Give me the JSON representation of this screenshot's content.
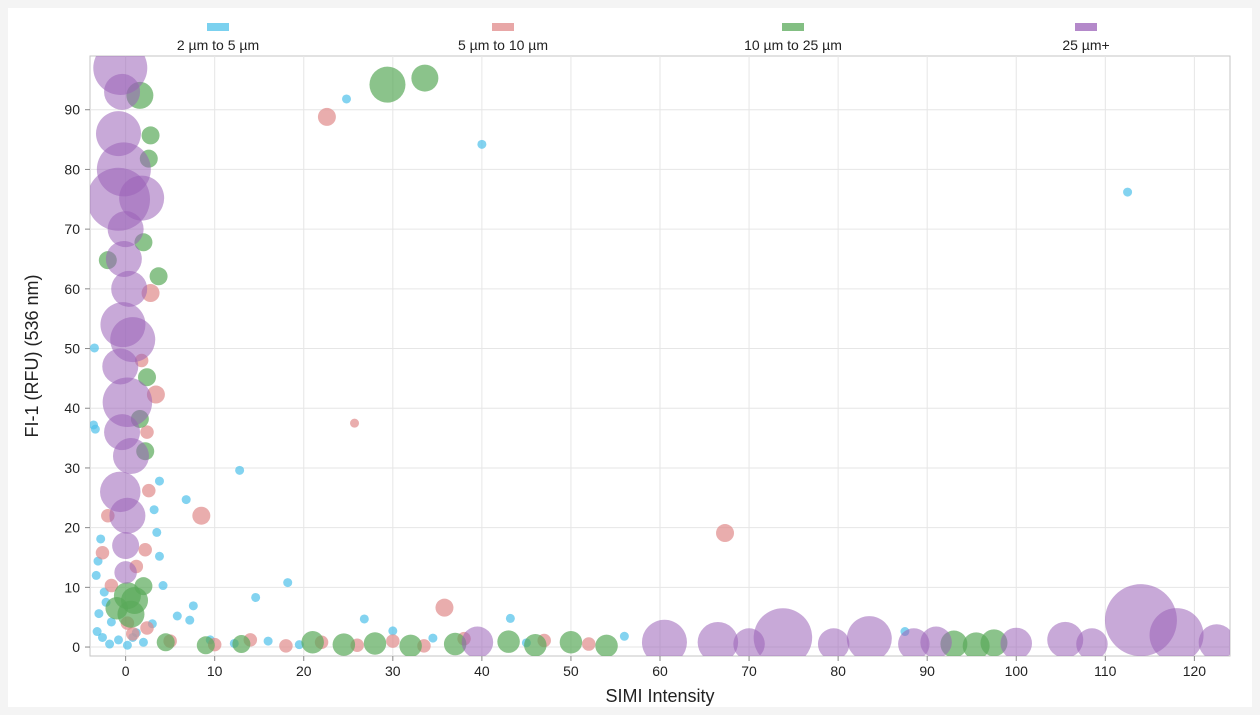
{
  "chart_data": {
    "type": "scatter",
    "title": "",
    "xlabel": "SIMI Intensity",
    "ylabel": "FI-1 (RFU) (536 nm)",
    "xlim": [
      -4,
      124
    ],
    "ylim": [
      -1.5,
      99
    ],
    "x_ticks": [
      0,
      10,
      20,
      30,
      40,
      50,
      60,
      70,
      80,
      90,
      100,
      110,
      120
    ],
    "y_ticks": [
      0,
      10,
      20,
      30,
      40,
      50,
      60,
      70,
      80,
      90
    ],
    "grid": true,
    "legend": {
      "placement": "top"
    },
    "bubble_size": "particle size",
    "series": [
      {
        "name": "2 µm to 5 µm",
        "color": "#4fc1e9",
        "points": [
          {
            "x": 24.8,
            "y": 91.8,
            "size": 1
          },
          {
            "x": 40.0,
            "y": 84.2,
            "size": 1
          },
          {
            "x": 112.5,
            "y": 76.2,
            "size": 1
          },
          {
            "x": -3.5,
            "y": 50.1,
            "size": 1
          },
          {
            "x": -3.6,
            "y": 37.2,
            "size": 1
          },
          {
            "x": -3.4,
            "y": 36.5,
            "size": 1
          },
          {
            "x": 12.8,
            "y": 29.6,
            "size": 1
          },
          {
            "x": 3.8,
            "y": 27.8,
            "size": 1
          },
          {
            "x": 6.8,
            "y": 24.7,
            "size": 1
          },
          {
            "x": 3.2,
            "y": 23.0,
            "size": 1
          },
          {
            "x": 3.5,
            "y": 19.2,
            "size": 1
          },
          {
            "x": 3.8,
            "y": 15.2,
            "size": 1
          },
          {
            "x": -2.8,
            "y": 18.1,
            "size": 1
          },
          {
            "x": -3.3,
            "y": 12.0,
            "size": 1
          },
          {
            "x": 18.2,
            "y": 10.8,
            "size": 1
          },
          {
            "x": 4.2,
            "y": 10.3,
            "size": 1
          },
          {
            "x": 14.6,
            "y": 8.3,
            "size": 1
          },
          {
            "x": 7.6,
            "y": 6.9,
            "size": 1
          },
          {
            "x": 5.8,
            "y": 5.2,
            "size": 1
          },
          {
            "x": 7.2,
            "y": 4.5,
            "size": 1
          },
          {
            "x": 26.8,
            "y": 4.7,
            "size": 1
          },
          {
            "x": 43.2,
            "y": 4.8,
            "size": 1
          },
          {
            "x": 3.0,
            "y": 3.9,
            "size": 1
          },
          {
            "x": -2.2,
            "y": 7.5,
            "size": 1
          },
          {
            "x": -1.6,
            "y": 4.2,
            "size": 1
          },
          {
            "x": -3.2,
            "y": 2.6,
            "size": 1
          },
          {
            "x": -2.6,
            "y": 1.6,
            "size": 1
          },
          {
            "x": -1.8,
            "y": 0.5,
            "size": 1
          },
          {
            "x": -0.8,
            "y": 1.2,
            "size": 1
          },
          {
            "x": 0.2,
            "y": 0.3,
            "size": 1
          },
          {
            "x": 1.2,
            "y": 2.4,
            "size": 1
          },
          {
            "x": 2.0,
            "y": 0.8,
            "size": 1
          },
          {
            "x": -3.0,
            "y": 5.6,
            "size": 1
          },
          {
            "x": 9.5,
            "y": 1.2,
            "size": 1
          },
          {
            "x": 12.2,
            "y": 0.6,
            "size": 1
          },
          {
            "x": 16.0,
            "y": 1.0,
            "size": 1
          },
          {
            "x": 19.5,
            "y": 0.4,
            "size": 1
          },
          {
            "x": 30.0,
            "y": 2.7,
            "size": 1
          },
          {
            "x": 34.5,
            "y": 1.5,
            "size": 1
          },
          {
            "x": 45.0,
            "y": 0.7,
            "size": 1
          },
          {
            "x": 56.0,
            "y": 1.8,
            "size": 1
          },
          {
            "x": 87.5,
            "y": 2.6,
            "size": 1
          },
          {
            "x": 0.8,
            "y": 1.6,
            "size": 1
          },
          {
            "x": -2.4,
            "y": 9.2,
            "size": 1
          },
          {
            "x": -3.1,
            "y": 14.4,
            "size": 1
          }
        ]
      },
      {
        "name": "5 µm to 10 µm",
        "color": "#e08a8a",
        "points": [
          {
            "x": 22.6,
            "y": 88.8,
            "size": 2
          },
          {
            "x": 25.7,
            "y": 37.5,
            "size": 1
          },
          {
            "x": 8.5,
            "y": 22.0,
            "size": 2
          },
          {
            "x": 67.3,
            "y": 19.1,
            "size": 2
          },
          {
            "x": 35.8,
            "y": 6.6,
            "size": 2
          },
          {
            "x": 2.8,
            "y": 59.3,
            "size": 2
          },
          {
            "x": 3.4,
            "y": 42.3,
            "size": 2
          },
          {
            "x": 2.6,
            "y": 26.2,
            "size": 1.5
          },
          {
            "x": 2.2,
            "y": 16.3,
            "size": 1.5
          },
          {
            "x": 1.2,
            "y": 13.5,
            "size": 1.5
          },
          {
            "x": -1.6,
            "y": 10.3,
            "size": 1.5
          },
          {
            "x": -2.6,
            "y": 15.8,
            "size": 1.5
          },
          {
            "x": -2.0,
            "y": 22.0,
            "size": 1.5
          },
          {
            "x": 0.2,
            "y": 4.0,
            "size": 1.5
          },
          {
            "x": 0.8,
            "y": 2.2,
            "size": 1.5
          },
          {
            "x": 2.4,
            "y": 3.2,
            "size": 1.5
          },
          {
            "x": 5.0,
            "y": 1.0,
            "size": 1.5
          },
          {
            "x": 10.0,
            "y": 0.4,
            "size": 1.5
          },
          {
            "x": 14.0,
            "y": 1.2,
            "size": 1.5
          },
          {
            "x": 18.0,
            "y": 0.2,
            "size": 1.5
          },
          {
            "x": 22.0,
            "y": 0.8,
            "size": 1.5
          },
          {
            "x": 26.0,
            "y": 0.3,
            "size": 1.5
          },
          {
            "x": 30.0,
            "y": 1.0,
            "size": 1.5
          },
          {
            "x": 33.5,
            "y": 0.2,
            "size": 1.5
          },
          {
            "x": 38.0,
            "y": 1.4,
            "size": 1.5
          },
          {
            "x": 47.0,
            "y": 1.1,
            "size": 1.5
          },
          {
            "x": 52.0,
            "y": 0.5,
            "size": 1.5
          },
          {
            "x": 1.8,
            "y": 48.0,
            "size": 1.5
          },
          {
            "x": 2.4,
            "y": 36.0,
            "size": 1.5
          }
        ]
      },
      {
        "name": "10 µm to 25 µm",
        "color": "#5aaa5a",
        "points": [
          {
            "x": 29.4,
            "y": 94.2,
            "size": 4
          },
          {
            "x": 33.6,
            "y": 95.3,
            "size": 3
          },
          {
            "x": 1.6,
            "y": 92.4,
            "size": 3
          },
          {
            "x": 2.8,
            "y": 85.7,
            "size": 2
          },
          {
            "x": 2.6,
            "y": 81.8,
            "size": 2
          },
          {
            "x": 3.7,
            "y": 62.1,
            "size": 2
          },
          {
            "x": 2.0,
            "y": 67.8,
            "size": 2
          },
          {
            "x": -2.0,
            "y": 64.8,
            "size": 2
          },
          {
            "x": 2.4,
            "y": 45.2,
            "size": 2
          },
          {
            "x": 2.2,
            "y": 32.8,
            "size": 2
          },
          {
            "x": 1.6,
            "y": 38.2,
            "size": 2
          },
          {
            "x": -1.0,
            "y": 6.5,
            "size": 2.5
          },
          {
            "x": 0.2,
            "y": 8.6,
            "size": 3
          },
          {
            "x": 1.0,
            "y": 7.8,
            "size": 3
          },
          {
            "x": 0.6,
            "y": 5.5,
            "size": 3
          },
          {
            "x": 2.0,
            "y": 10.2,
            "size": 2
          },
          {
            "x": 4.5,
            "y": 0.8,
            "size": 2
          },
          {
            "x": 9.0,
            "y": 0.3,
            "size": 2
          },
          {
            "x": 13.0,
            "y": 0.5,
            "size": 2
          },
          {
            "x": 21.0,
            "y": 0.8,
            "size": 2.5
          },
          {
            "x": 24.5,
            "y": 0.4,
            "size": 2.5
          },
          {
            "x": 28.0,
            "y": 0.6,
            "size": 2.5
          },
          {
            "x": 32.0,
            "y": 0.2,
            "size": 2.5
          },
          {
            "x": 37.0,
            "y": 0.5,
            "size": 2.5
          },
          {
            "x": 43.0,
            "y": 0.9,
            "size": 2.5
          },
          {
            "x": 46.0,
            "y": 0.3,
            "size": 2.5
          },
          {
            "x": 50.0,
            "y": 0.8,
            "size": 2.5
          },
          {
            "x": 54.0,
            "y": 0.2,
            "size": 2.5
          },
          {
            "x": 93.0,
            "y": 0.5,
            "size": 3
          },
          {
            "x": 95.5,
            "y": 0.2,
            "size": 3
          },
          {
            "x": 97.5,
            "y": 0.7,
            "size": 3
          }
        ]
      },
      {
        "name": "25 µm+",
        "color": "#9b62b8",
        "points": [
          {
            "x": -0.6,
            "y": 97.0,
            "size": 6
          },
          {
            "x": -0.4,
            "y": 93.0,
            "size": 4
          },
          {
            "x": -0.8,
            "y": 86.0,
            "size": 5
          },
          {
            "x": -0.2,
            "y": 80.0,
            "size": 6
          },
          {
            "x": 1.8,
            "y": 75.2,
            "size": 5
          },
          {
            "x": -0.8,
            "y": 75.0,
            "size": 7
          },
          {
            "x": 0.0,
            "y": 70.0,
            "size": 4
          },
          {
            "x": -0.2,
            "y": 65.0,
            "size": 4
          },
          {
            "x": 0.4,
            "y": 60.0,
            "size": 4
          },
          {
            "x": -0.3,
            "y": 54.0,
            "size": 5
          },
          {
            "x": 0.8,
            "y": 51.5,
            "size": 5
          },
          {
            "x": -0.6,
            "y": 47.0,
            "size": 4
          },
          {
            "x": 0.2,
            "y": 41.0,
            "size": 5.5
          },
          {
            "x": -0.4,
            "y": 36.0,
            "size": 4
          },
          {
            "x": 0.6,
            "y": 32.0,
            "size": 4
          },
          {
            "x": -0.6,
            "y": 26.0,
            "size": 4.5
          },
          {
            "x": 0.2,
            "y": 22.0,
            "size": 4
          },
          {
            "x": 0.0,
            "y": 17.0,
            "size": 3
          },
          {
            "x": 0.0,
            "y": 12.5,
            "size": 2.5
          },
          {
            "x": 39.5,
            "y": 0.8,
            "size": 3.5
          },
          {
            "x": 60.5,
            "y": 0.8,
            "size": 5
          },
          {
            "x": 66.5,
            "y": 0.8,
            "size": 4.5
          },
          {
            "x": 70.0,
            "y": 0.5,
            "size": 3.5
          },
          {
            "x": 73.8,
            "y": 1.6,
            "size": 6.5
          },
          {
            "x": 79.5,
            "y": 0.5,
            "size": 3.5
          },
          {
            "x": 83.5,
            "y": 1.4,
            "size": 5
          },
          {
            "x": 88.5,
            "y": 0.5,
            "size": 3.5
          },
          {
            "x": 91.0,
            "y": 0.8,
            "size": 3.5
          },
          {
            "x": 100.0,
            "y": 0.6,
            "size": 3.5
          },
          {
            "x": 105.5,
            "y": 1.2,
            "size": 4
          },
          {
            "x": 108.5,
            "y": 0.5,
            "size": 3.5
          },
          {
            "x": 114.0,
            "y": 4.5,
            "size": 8
          },
          {
            "x": 118.0,
            "y": 2.0,
            "size": 6
          },
          {
            "x": 122.5,
            "y": 0.8,
            "size": 4
          }
        ]
      }
    ]
  }
}
